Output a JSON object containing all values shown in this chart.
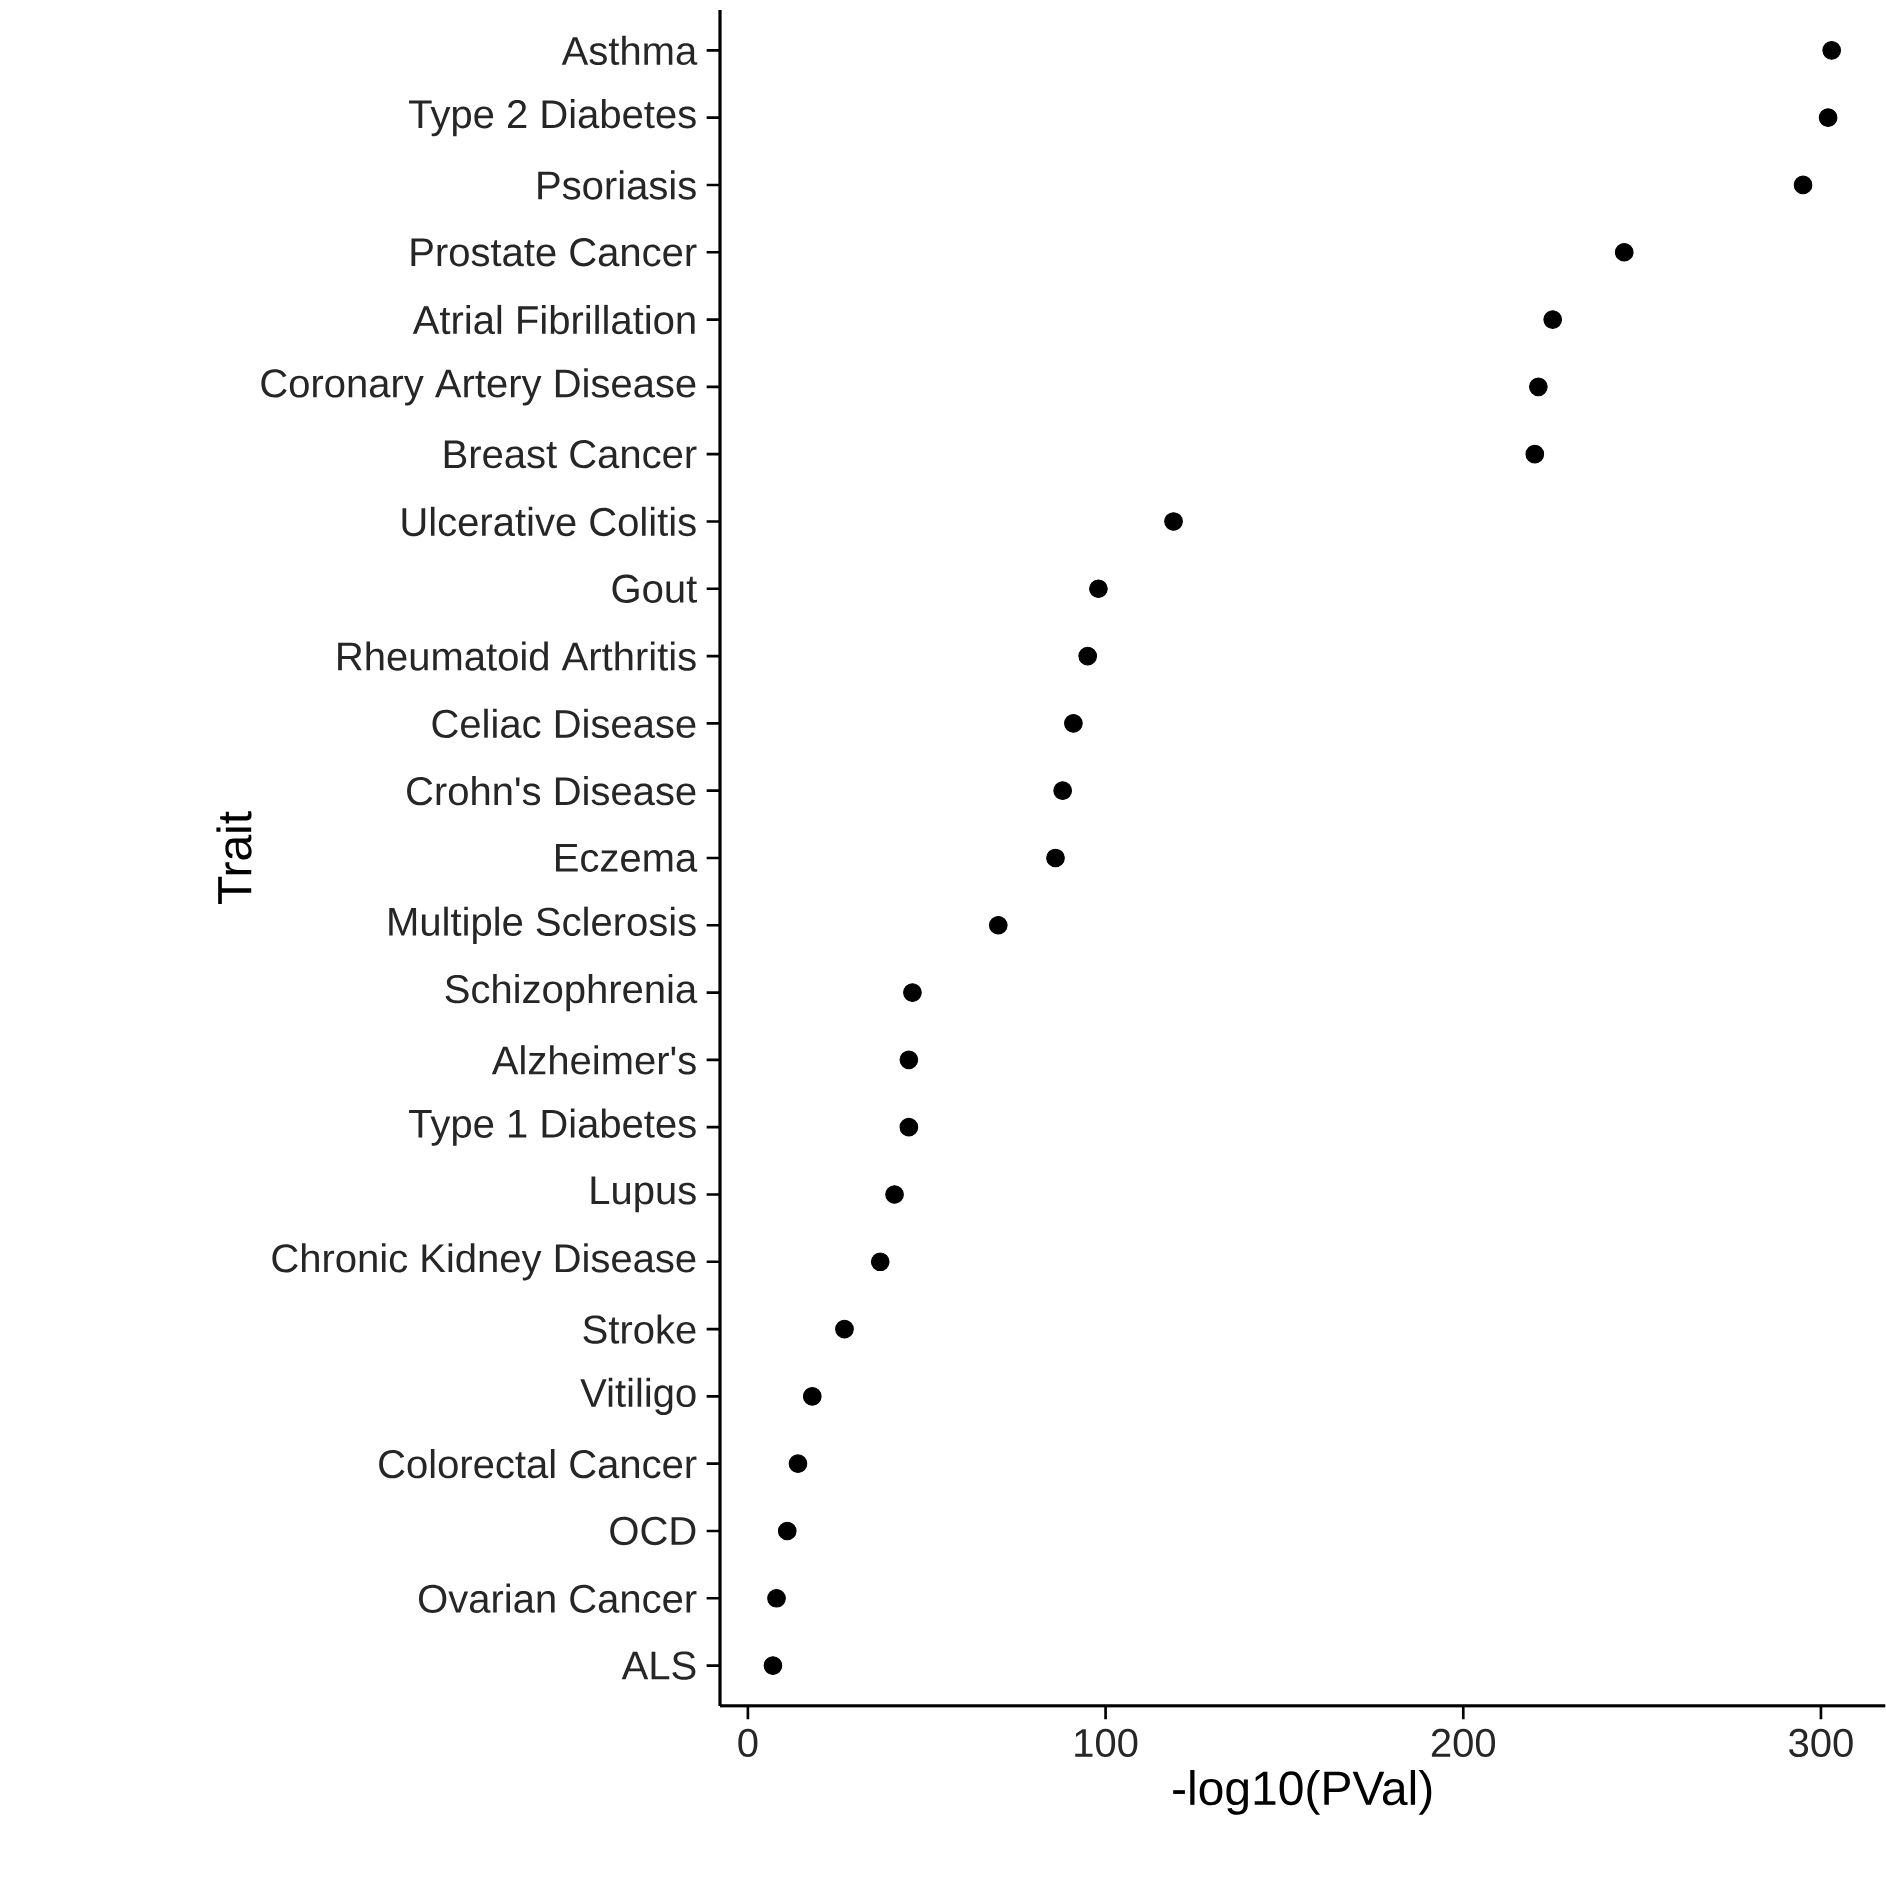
{
  "chart_data": {
    "type": "scatter",
    "orientation": "horizontal",
    "color": "#000000",
    "marker": "circle",
    "categories": [
      "Asthma",
      "Type 2 Diabetes",
      "Psoriasis",
      "Prostate Cancer",
      "Atrial Fibrillation",
      "Coronary Artery Disease",
      "Breast Cancer",
      "Ulcerative Colitis",
      "Gout",
      "Rheumatoid Arthritis",
      "Celiac Disease",
      "Crohn's Disease",
      "Eczema",
      "Multiple Sclerosis",
      "Schizophrenia",
      "Alzheimer's",
      "Type 1 Diabetes",
      "Lupus",
      "Chronic Kidney Disease",
      "Stroke",
      "Vitiligo",
      "Colorectal Cancer",
      "OCD",
      "Ovarian Cancer",
      "ALS"
    ],
    "values": [
      303,
      302,
      295,
      245,
      225,
      221,
      220,
      119,
      98,
      95,
      91,
      88,
      86,
      70,
      46,
      45,
      45,
      41,
      37,
      27,
      18,
      14,
      11,
      8,
      7
    ],
    "xlim": [
      -7.8,
      318
    ],
    "xticks": [
      0,
      100,
      200,
      300
    ],
    "xlabel": "-log10(PVal)",
    "ylabel": "Trait"
  }
}
